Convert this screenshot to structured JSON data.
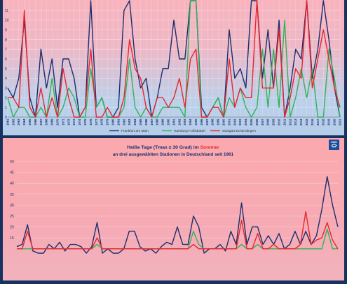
{
  "chart_data": [
    {
      "type": "line",
      "title": "",
      "x": [
        "1961",
        "1962",
        "1963",
        "1964",
        "1965",
        "1966",
        "1967",
        "1968",
        "1969",
        "1970",
        "1971",
        "1972",
        "1973",
        "1974",
        "1975",
        "1976",
        "1977",
        "1978",
        "1979",
        "1980",
        "1981",
        "1982",
        "1983",
        "1984",
        "1985",
        "1986",
        "1987",
        "1988",
        "1989",
        "1990",
        "1991",
        "1992",
        "1993",
        "1994",
        "1995",
        "1996",
        "1997",
        "1998",
        "1999",
        "2000",
        "2001",
        "2002",
        "2003",
        "2004",
        "2005",
        "2006",
        "2007",
        "2008",
        "2009",
        "2010",
        "2011",
        "2012",
        "2013",
        "2014",
        "2015",
        "2016",
        "2017",
        "2018",
        "2019",
        "2020",
        "2021"
      ],
      "ylim": [
        0,
        12
      ],
      "yticks": [
        "0",
        "1",
        "2",
        "3",
        "4",
        "5",
        "6",
        "7",
        "8",
        "9",
        "10",
        "11"
      ],
      "grid": true,
      "legend_position": "bottom",
      "series": [
        {
          "name": "Frankfurt am Main",
          "color": "#1b2f6e",
          "values": [
            3,
            2,
            4,
            10,
            2,
            0,
            7,
            3,
            6,
            1,
            6,
            6,
            4,
            0,
            1,
            12,
            1,
            2,
            0,
            0,
            1,
            11,
            12,
            6,
            3,
            4,
            0,
            2,
            5,
            5,
            10,
            6,
            6,
            12,
            12,
            1,
            0,
            1,
            2,
            0,
            9,
            4,
            5,
            3,
            12,
            12,
            4,
            9,
            3,
            10,
            0,
            3,
            7,
            6,
            12,
            4,
            7,
            12,
            8,
            3,
            0
          ],
          "endpoint": 0
        },
        {
          "name": "Hamburg Fuhlsbüttel",
          "color": "#2fb35a",
          "values": [
            2,
            0,
            1,
            1,
            0,
            0,
            1,
            0,
            4,
            0,
            1,
            3,
            2,
            0,
            0,
            5,
            1,
            2,
            0,
            0,
            0,
            1,
            6,
            1,
            0,
            1,
            0,
            0,
            1,
            1,
            1,
            1,
            0,
            12,
            12,
            0,
            0,
            1,
            2,
            0,
            2,
            1,
            3,
            1,
            0,
            1,
            7,
            1,
            7,
            1,
            10,
            0,
            2,
            5,
            2,
            5,
            0,
            0,
            7,
            4,
            0
          ],
          "endpoint": 0
        },
        {
          "name": "Stuttgart Echterdingen",
          "color": "#e8262e",
          "values": [
            2,
            2,
            1,
            11,
            1,
            0,
            3,
            0,
            2,
            0,
            5,
            2,
            0,
            0,
            1,
            7,
            0,
            0,
            1,
            0,
            0,
            2,
            8,
            5,
            4,
            1,
            0,
            2,
            2,
            1,
            2,
            4,
            1,
            6,
            7,
            0,
            0,
            1,
            1,
            0,
            6,
            1,
            3,
            2,
            2,
            12,
            3,
            3,
            3,
            9,
            0,
            2,
            5,
            4,
            12,
            3,
            6,
            9,
            6,
            3,
            1
          ],
          "endpoint": 0
        }
      ]
    },
    {
      "type": "line",
      "title_prefix": "Heiße Tage (Tmax ≥ 30 Grad) im ",
      "title_highlight": "Sommer",
      "subtitle": "an drei ausgewählten Stationen in Deutschland seit 1961",
      "title": "Heiße Tage (Tmax ≥ 30 Grad) im Sommer",
      "ylim": [
        0,
        50
      ],
      "yticks": [
        "15",
        "20",
        "25",
        "30",
        "35",
        "40",
        "45",
        "50"
      ],
      "grid": true,
      "series": [
        {
          "name": "Frankfurt am Main",
          "color": "#1b2f6e",
          "values": [
            11,
            12,
            21,
            9,
            8,
            8,
            12,
            10,
            13,
            9,
            12,
            12,
            11,
            8,
            11,
            22,
            8,
            10,
            8,
            8,
            10,
            18,
            18,
            11,
            9,
            10,
            8,
            11,
            13,
            12,
            20,
            12,
            12,
            25,
            20,
            8,
            10,
            10,
            12,
            9,
            18,
            12,
            31,
            12,
            20,
            20,
            12,
            16,
            12,
            17,
            10,
            12,
            18,
            12,
            18,
            12,
            16,
            28,
            43,
            30,
            20
          ],
          "endpoint": 20
        },
        {
          "name": "Hamburg Fuhlsbüttel",
          "color": "#2fb35a",
          "values": [
            10,
            10,
            10,
            10,
            10,
            10,
            10,
            10,
            10,
            10,
            10,
            10,
            10,
            10,
            10,
            12,
            10,
            10,
            10,
            10,
            10,
            10,
            10,
            10,
            10,
            10,
            10,
            10,
            10,
            10,
            10,
            10,
            10,
            18,
            12,
            10,
            10,
            10,
            10,
            10,
            10,
            10,
            12,
            10,
            10,
            12,
            10,
            10,
            10,
            10,
            10,
            10,
            10,
            10,
            10,
            10,
            10,
            10,
            19,
            10,
            10
          ],
          "endpoint": 10
        },
        {
          "name": "Stuttgart Echterdingen",
          "color": "#e8262e",
          "values": [
            10,
            10,
            18,
            10,
            10,
            10,
            10,
            10,
            10,
            10,
            10,
            10,
            10,
            10,
            10,
            15,
            10,
            10,
            10,
            10,
            10,
            10,
            10,
            10,
            10,
            10,
            10,
            10,
            10,
            10,
            10,
            10,
            10,
            12,
            10,
            10,
            10,
            10,
            10,
            10,
            10,
            10,
            23,
            10,
            10,
            17,
            10,
            10,
            12,
            10,
            10,
            10,
            10,
            12,
            27,
            12,
            14,
            15,
            22,
            14,
            10
          ],
          "endpoint": 10
        }
      ]
    }
  ],
  "logo_text": "DWD"
}
